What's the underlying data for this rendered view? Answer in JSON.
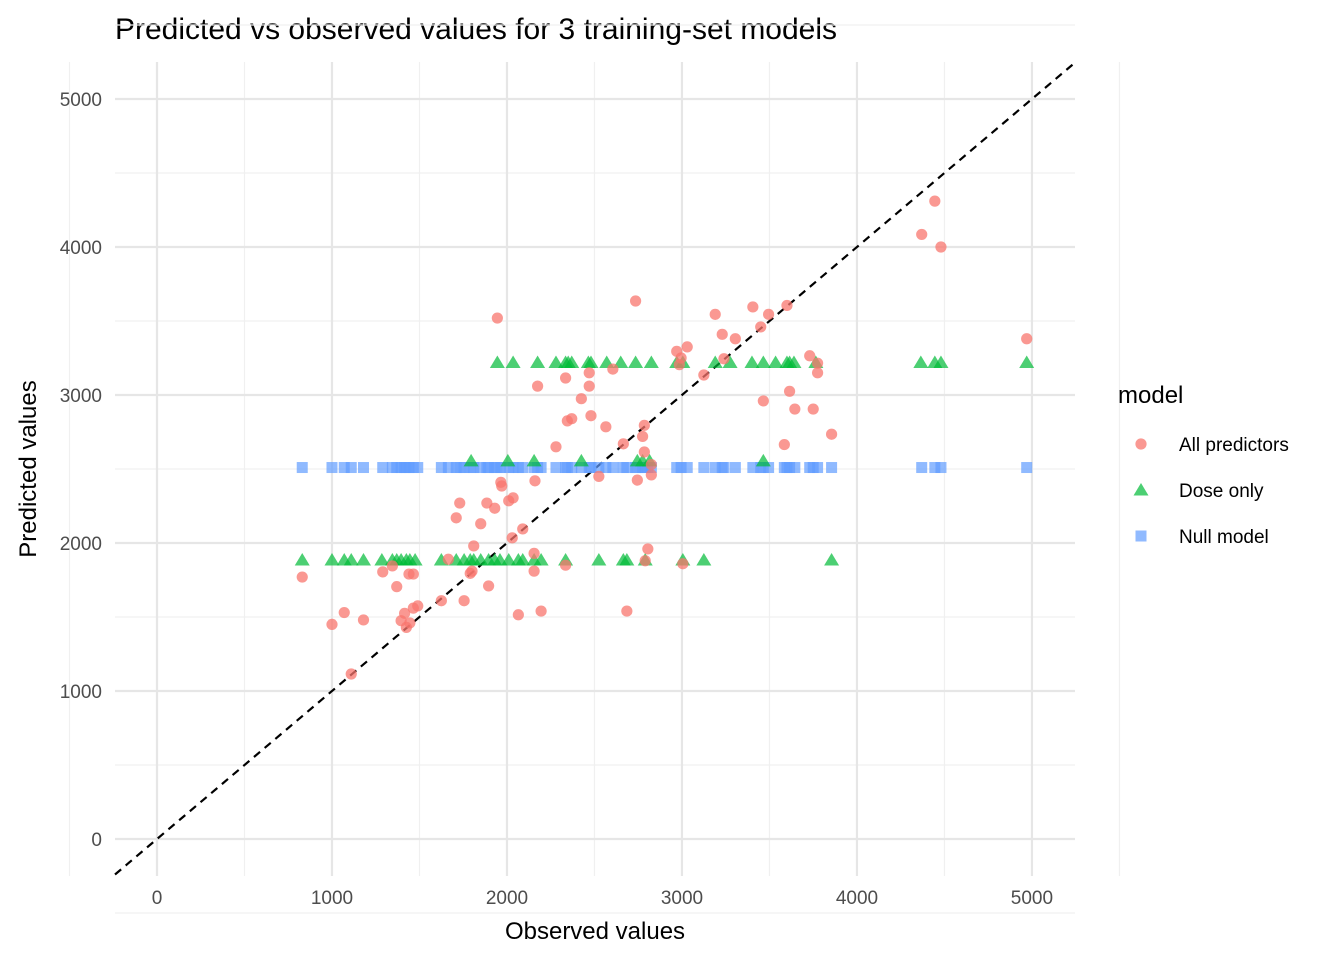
{
  "chart_data": {
    "type": "scatter",
    "title": "Predicted vs observed values for 3 training-set models",
    "xlabel": "Observed values",
    "ylabel": "Predicted values",
    "xlim": [
      -240,
      5246
    ],
    "ylim": [
      -250,
      5250
    ],
    "xticks": [
      0,
      1000,
      2000,
      3000,
      4000,
      5000
    ],
    "yticks": [
      0,
      1000,
      2000,
      3000,
      4000,
      5000
    ],
    "grid": true,
    "reference_line": {
      "slope": 1,
      "intercept": 0,
      "style": "dashed",
      "color": "#000000"
    },
    "legend": {
      "title": "model",
      "placement": "right",
      "entries": [
        "All predictors",
        "Dose only",
        "Null model"
      ]
    },
    "series": [
      {
        "name": "All predictors",
        "color": "#F8766D",
        "marker": "circle",
        "points": [
          [
            830,
            1770
          ],
          [
            1000,
            1450
          ],
          [
            1070,
            1530
          ],
          [
            1110,
            1115
          ],
          [
            1180,
            1480
          ],
          [
            1290,
            1805
          ],
          [
            1345,
            1845
          ],
          [
            1370,
            1705
          ],
          [
            1395,
            1475
          ],
          [
            1415,
            1525
          ],
          [
            1425,
            1430
          ],
          [
            1440,
            1790
          ],
          [
            1465,
            1790
          ],
          [
            1465,
            1560
          ],
          [
            1490,
            1575
          ],
          [
            1445,
            1460
          ],
          [
            1625,
            1610
          ],
          [
            1665,
            1890
          ],
          [
            1710,
            2170
          ],
          [
            1730,
            2270
          ],
          [
            1755,
            1610
          ],
          [
            1790,
            1795
          ],
          [
            1810,
            1980
          ],
          [
            1800,
            1810
          ],
          [
            1850,
            2130
          ],
          [
            1885,
            2270
          ],
          [
            1895,
            1710
          ],
          [
            1930,
            2235
          ],
          [
            1945,
            3520
          ],
          [
            1965,
            2410
          ],
          [
            1970,
            2385
          ],
          [
            2010,
            2285
          ],
          [
            2035,
            2305
          ],
          [
            2030,
            2035
          ],
          [
            2065,
            1515
          ],
          [
            2090,
            2095
          ],
          [
            2155,
            1930
          ],
          [
            2155,
            1810
          ],
          [
            2160,
            2420
          ],
          [
            2175,
            3060
          ],
          [
            2195,
            1540
          ],
          [
            2280,
            2650
          ],
          [
            2335,
            3115
          ],
          [
            2345,
            2825
          ],
          [
            2370,
            2840
          ],
          [
            2335,
            1850
          ],
          [
            2425,
            2975
          ],
          [
            2470,
            3060
          ],
          [
            2470,
            3150
          ],
          [
            2480,
            2860
          ],
          [
            2525,
            2450
          ],
          [
            2565,
            2785
          ],
          [
            2605,
            3175
          ],
          [
            2805,
            1960
          ],
          [
            2790,
            1880
          ],
          [
            2825,
            2530
          ],
          [
            2825,
            2460
          ],
          [
            2785,
            2615
          ],
          [
            2775,
            2720
          ],
          [
            2785,
            2795
          ],
          [
            2745,
            2425
          ],
          [
            2735,
            3635
          ],
          [
            2685,
            1540
          ],
          [
            2665,
            2670
          ],
          [
            2970,
            3295
          ],
          [
            2995,
            3250
          ],
          [
            2985,
            3205
          ],
          [
            3030,
            3325
          ],
          [
            3005,
            1860
          ],
          [
            3125,
            3135
          ],
          [
            3190,
            3545
          ],
          [
            3230,
            3410
          ],
          [
            3240,
            3245
          ],
          [
            3305,
            3380
          ],
          [
            3405,
            3595
          ],
          [
            3450,
            3460
          ],
          [
            3465,
            2960
          ],
          [
            3495,
            3545
          ],
          [
            3585,
            2665
          ],
          [
            3600,
            3605
          ],
          [
            3615,
            3025
          ],
          [
            3645,
            2905
          ],
          [
            3730,
            3265
          ],
          [
            3750,
            2905
          ],
          [
            3775,
            3215
          ],
          [
            3775,
            3150
          ],
          [
            3855,
            2735
          ],
          [
            4370,
            4085
          ],
          [
            4445,
            4310
          ],
          [
            4480,
            4000
          ],
          [
            4970,
            3380
          ]
        ]
      },
      {
        "name": "Dose only",
        "color": "#00BA38",
        "marker": "triangle",
        "points": [
          [
            1945,
            3220
          ],
          [
            2035,
            3220
          ],
          [
            2175,
            3220
          ],
          [
            2280,
            3220
          ],
          [
            2335,
            3220
          ],
          [
            2350,
            3220
          ],
          [
            2370,
            3220
          ],
          [
            2465,
            3220
          ],
          [
            2480,
            3220
          ],
          [
            2570,
            3220
          ],
          [
            2650,
            3220
          ],
          [
            2735,
            3220
          ],
          [
            2825,
            3220
          ],
          [
            2970,
            3220
          ],
          [
            3005,
            3220
          ],
          [
            3190,
            3220
          ],
          [
            3275,
            3220
          ],
          [
            3400,
            3220
          ],
          [
            3465,
            3220
          ],
          [
            3535,
            3220
          ],
          [
            3600,
            3220
          ],
          [
            3615,
            3220
          ],
          [
            3640,
            3220
          ],
          [
            3765,
            3220
          ],
          [
            4365,
            3220
          ],
          [
            4445,
            3220
          ],
          [
            4480,
            3220
          ],
          [
            4970,
            3220
          ],
          [
            1795,
            2555
          ],
          [
            2005,
            2555
          ],
          [
            2155,
            2555
          ],
          [
            2425,
            2555
          ],
          [
            2745,
            2555
          ],
          [
            2775,
            2555
          ],
          [
            2815,
            2555
          ],
          [
            3465,
            2555
          ],
          [
            830,
            1885
          ],
          [
            1000,
            1885
          ],
          [
            1070,
            1885
          ],
          [
            1110,
            1885
          ],
          [
            1180,
            1885
          ],
          [
            1285,
            1885
          ],
          [
            1345,
            1885
          ],
          [
            1370,
            1885
          ],
          [
            1395,
            1885
          ],
          [
            1425,
            1885
          ],
          [
            1445,
            1885
          ],
          [
            1475,
            1885
          ],
          [
            1625,
            1885
          ],
          [
            1710,
            1885
          ],
          [
            1755,
            1885
          ],
          [
            1790,
            1885
          ],
          [
            1810,
            1885
          ],
          [
            1850,
            1885
          ],
          [
            1895,
            1885
          ],
          [
            1930,
            1885
          ],
          [
            1960,
            1885
          ],
          [
            2010,
            1885
          ],
          [
            2065,
            1885
          ],
          [
            2090,
            1885
          ],
          [
            2155,
            1885
          ],
          [
            2195,
            1885
          ],
          [
            2335,
            1885
          ],
          [
            2525,
            1885
          ],
          [
            2665,
            1885
          ],
          [
            2685,
            1885
          ],
          [
            2790,
            1885
          ],
          [
            3005,
            1885
          ],
          [
            3125,
            1885
          ],
          [
            3855,
            1885
          ]
        ]
      },
      {
        "name": "Null model",
        "color": "#619CFF",
        "marker": "square",
        "y_constant": 2510,
        "x": [
          830,
          1000,
          1070,
          1110,
          1180,
          1290,
          1345,
          1370,
          1395,
          1415,
          1425,
          1440,
          1465,
          1490,
          1625,
          1665,
          1710,
          1730,
          1755,
          1790,
          1810,
          1850,
          1885,
          1895,
          1930,
          1945,
          1965,
          2010,
          2035,
          2065,
          2090,
          2155,
          2175,
          2195,
          2280,
          2335,
          2345,
          2370,
          2425,
          2470,
          2480,
          2525,
          2565,
          2605,
          2665,
          2685,
          2735,
          2745,
          2775,
          2790,
          2805,
          2825,
          2970,
          2995,
          3030,
          3125,
          3190,
          3230,
          3240,
          3305,
          3405,
          3450,
          3465,
          3495,
          3585,
          3600,
          3615,
          3645,
          3730,
          3750,
          3775,
          3855,
          4370,
          4445,
          4480,
          4970
        ]
      }
    ]
  }
}
